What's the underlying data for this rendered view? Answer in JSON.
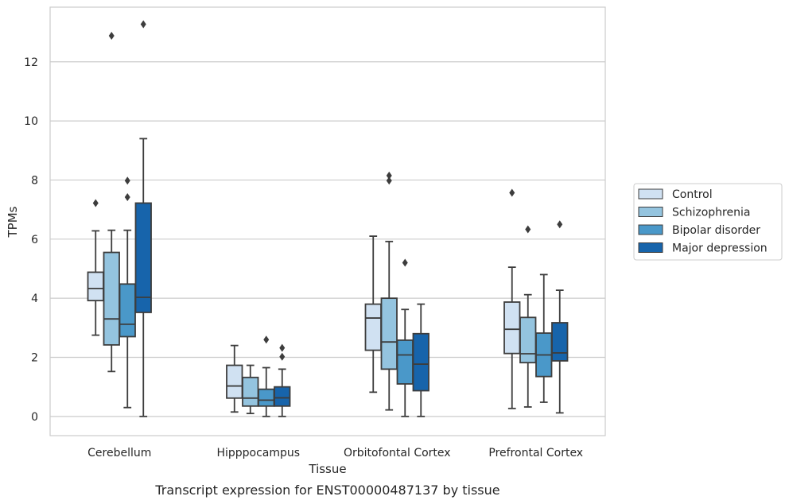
{
  "chart_data": {
    "type": "boxplot",
    "title": "Transcript expression for ENST00000487137 by tissue",
    "xlabel": "Tissue",
    "ylabel": "TPMs",
    "ylim": [
      -0.65,
      13.85
    ],
    "yticks": [
      0,
      2,
      4,
      6,
      8,
      10,
      12
    ],
    "grid": true,
    "legend_position": "right",
    "categories": [
      "Cerebellum",
      "Hipppocampus",
      "Orbitofontal Cortex",
      "Prefrontal Cortex"
    ],
    "series": [
      {
        "name": "Control",
        "color": "#d0e1f2",
        "boxes": [
          {
            "whislo": 2.75,
            "q1": 3.92,
            "med": 4.33,
            "q3": 4.88,
            "whishi": 6.28,
            "fliers": [
              7.22
            ]
          },
          {
            "whislo": 0.15,
            "q1": 0.62,
            "med": 1.03,
            "q3": 1.73,
            "whishi": 2.4,
            "fliers": []
          },
          {
            "whislo": 0.82,
            "q1": 2.24,
            "med": 3.33,
            "q3": 3.8,
            "whishi": 6.1,
            "fliers": []
          },
          {
            "whislo": 0.27,
            "q1": 2.13,
            "med": 2.95,
            "q3": 3.87,
            "whishi": 5.05,
            "fliers": [
              7.57
            ]
          }
        ]
      },
      {
        "name": "Schizophrenia",
        "color": "#94c4df",
        "boxes": [
          {
            "whislo": 1.52,
            "q1": 2.42,
            "med": 3.3,
            "q3": 5.55,
            "whishi": 6.3,
            "fliers": [
              12.88
            ]
          },
          {
            "whislo": 0.1,
            "q1": 0.35,
            "med": 0.62,
            "q3": 1.32,
            "whishi": 1.73,
            "fliers": []
          },
          {
            "whislo": 0.22,
            "q1": 1.6,
            "med": 2.52,
            "q3": 4.0,
            "whishi": 5.92,
            "fliers": [
              7.98,
              8.15
            ]
          },
          {
            "whislo": 0.32,
            "q1": 1.82,
            "med": 2.12,
            "q3": 3.35,
            "whishi": 4.12,
            "fliers": [
              6.33
            ]
          }
        ]
      },
      {
        "name": "Bipolar disorder",
        "color": "#4a98c9",
        "boxes": [
          {
            "whislo": 0.3,
            "q1": 2.7,
            "med": 3.12,
            "q3": 4.48,
            "whishi": 6.3,
            "fliers": [
              7.42,
              7.98
            ]
          },
          {
            "whislo": 0.0,
            "q1": 0.35,
            "med": 0.55,
            "q3": 0.92,
            "whishi": 1.65,
            "fliers": [
              2.6
            ]
          },
          {
            "whislo": 0.0,
            "q1": 1.1,
            "med": 2.08,
            "q3": 2.58,
            "whishi": 3.62,
            "fliers": [
              5.2
            ]
          },
          {
            "whislo": 0.48,
            "q1": 1.35,
            "med": 2.08,
            "q3": 2.82,
            "whishi": 4.8,
            "fliers": []
          }
        ]
      },
      {
        "name": "Major depression",
        "color": "#1764ab",
        "boxes": [
          {
            "whislo": 0.0,
            "q1": 3.52,
            "med": 4.03,
            "q3": 7.22,
            "whishi": 9.4,
            "fliers": [
              13.27
            ]
          },
          {
            "whislo": 0.0,
            "q1": 0.35,
            "med": 0.63,
            "q3": 1.0,
            "whishi": 1.6,
            "fliers": [
              2.02,
              2.32
            ]
          },
          {
            "whislo": 0.0,
            "q1": 0.87,
            "med": 1.77,
            "q3": 2.8,
            "whishi": 3.8,
            "fliers": []
          },
          {
            "whislo": 0.12,
            "q1": 1.88,
            "med": 2.15,
            "q3": 3.17,
            "whishi": 4.27,
            "fliers": [
              6.5
            ]
          }
        ]
      }
    ]
  }
}
